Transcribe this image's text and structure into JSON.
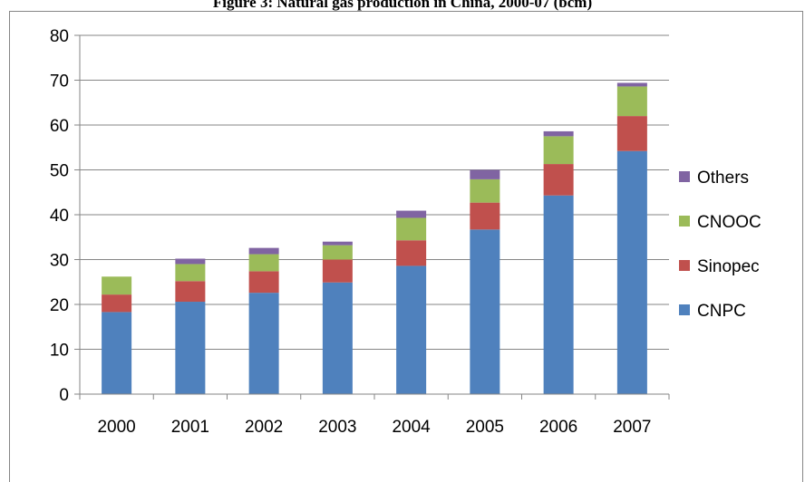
{
  "chart_data": {
    "type": "bar",
    "stacked": true,
    "title": "Figure 3: Natural gas production in China, 2000-07 (bcm)",
    "categories": [
      "2000",
      "2001",
      "2002",
      "2003",
      "2004",
      "2005",
      "2006",
      "2007"
    ],
    "series": [
      {
        "name": "CNPC",
        "color": "#4F81BD",
        "values": [
          18.3,
          20.6,
          22.6,
          24.9,
          28.6,
          36.7,
          44.3,
          54.2
        ]
      },
      {
        "name": "Sinopec",
        "color": "#C0504D",
        "values": [
          3.9,
          4.6,
          4.8,
          5.1,
          5.7,
          6.0,
          7.0,
          7.8
        ]
      },
      {
        "name": "CNOOC",
        "color": "#9BBB59",
        "values": [
          4.0,
          3.8,
          3.8,
          3.2,
          5.0,
          5.2,
          6.2,
          6.6
        ]
      },
      {
        "name": "Others",
        "color": "#8064A2",
        "values": [
          0.0,
          1.2,
          1.4,
          0.8,
          1.6,
          2.1,
          1.1,
          0.8
        ]
      }
    ],
    "y_ticks": [
      "0",
      "10",
      "20",
      "30",
      "40",
      "50",
      "60",
      "70",
      "80"
    ],
    "ylim": [
      0,
      80
    ],
    "grid": true,
    "legend_position": "right",
    "xlabel": "",
    "ylabel": ""
  }
}
